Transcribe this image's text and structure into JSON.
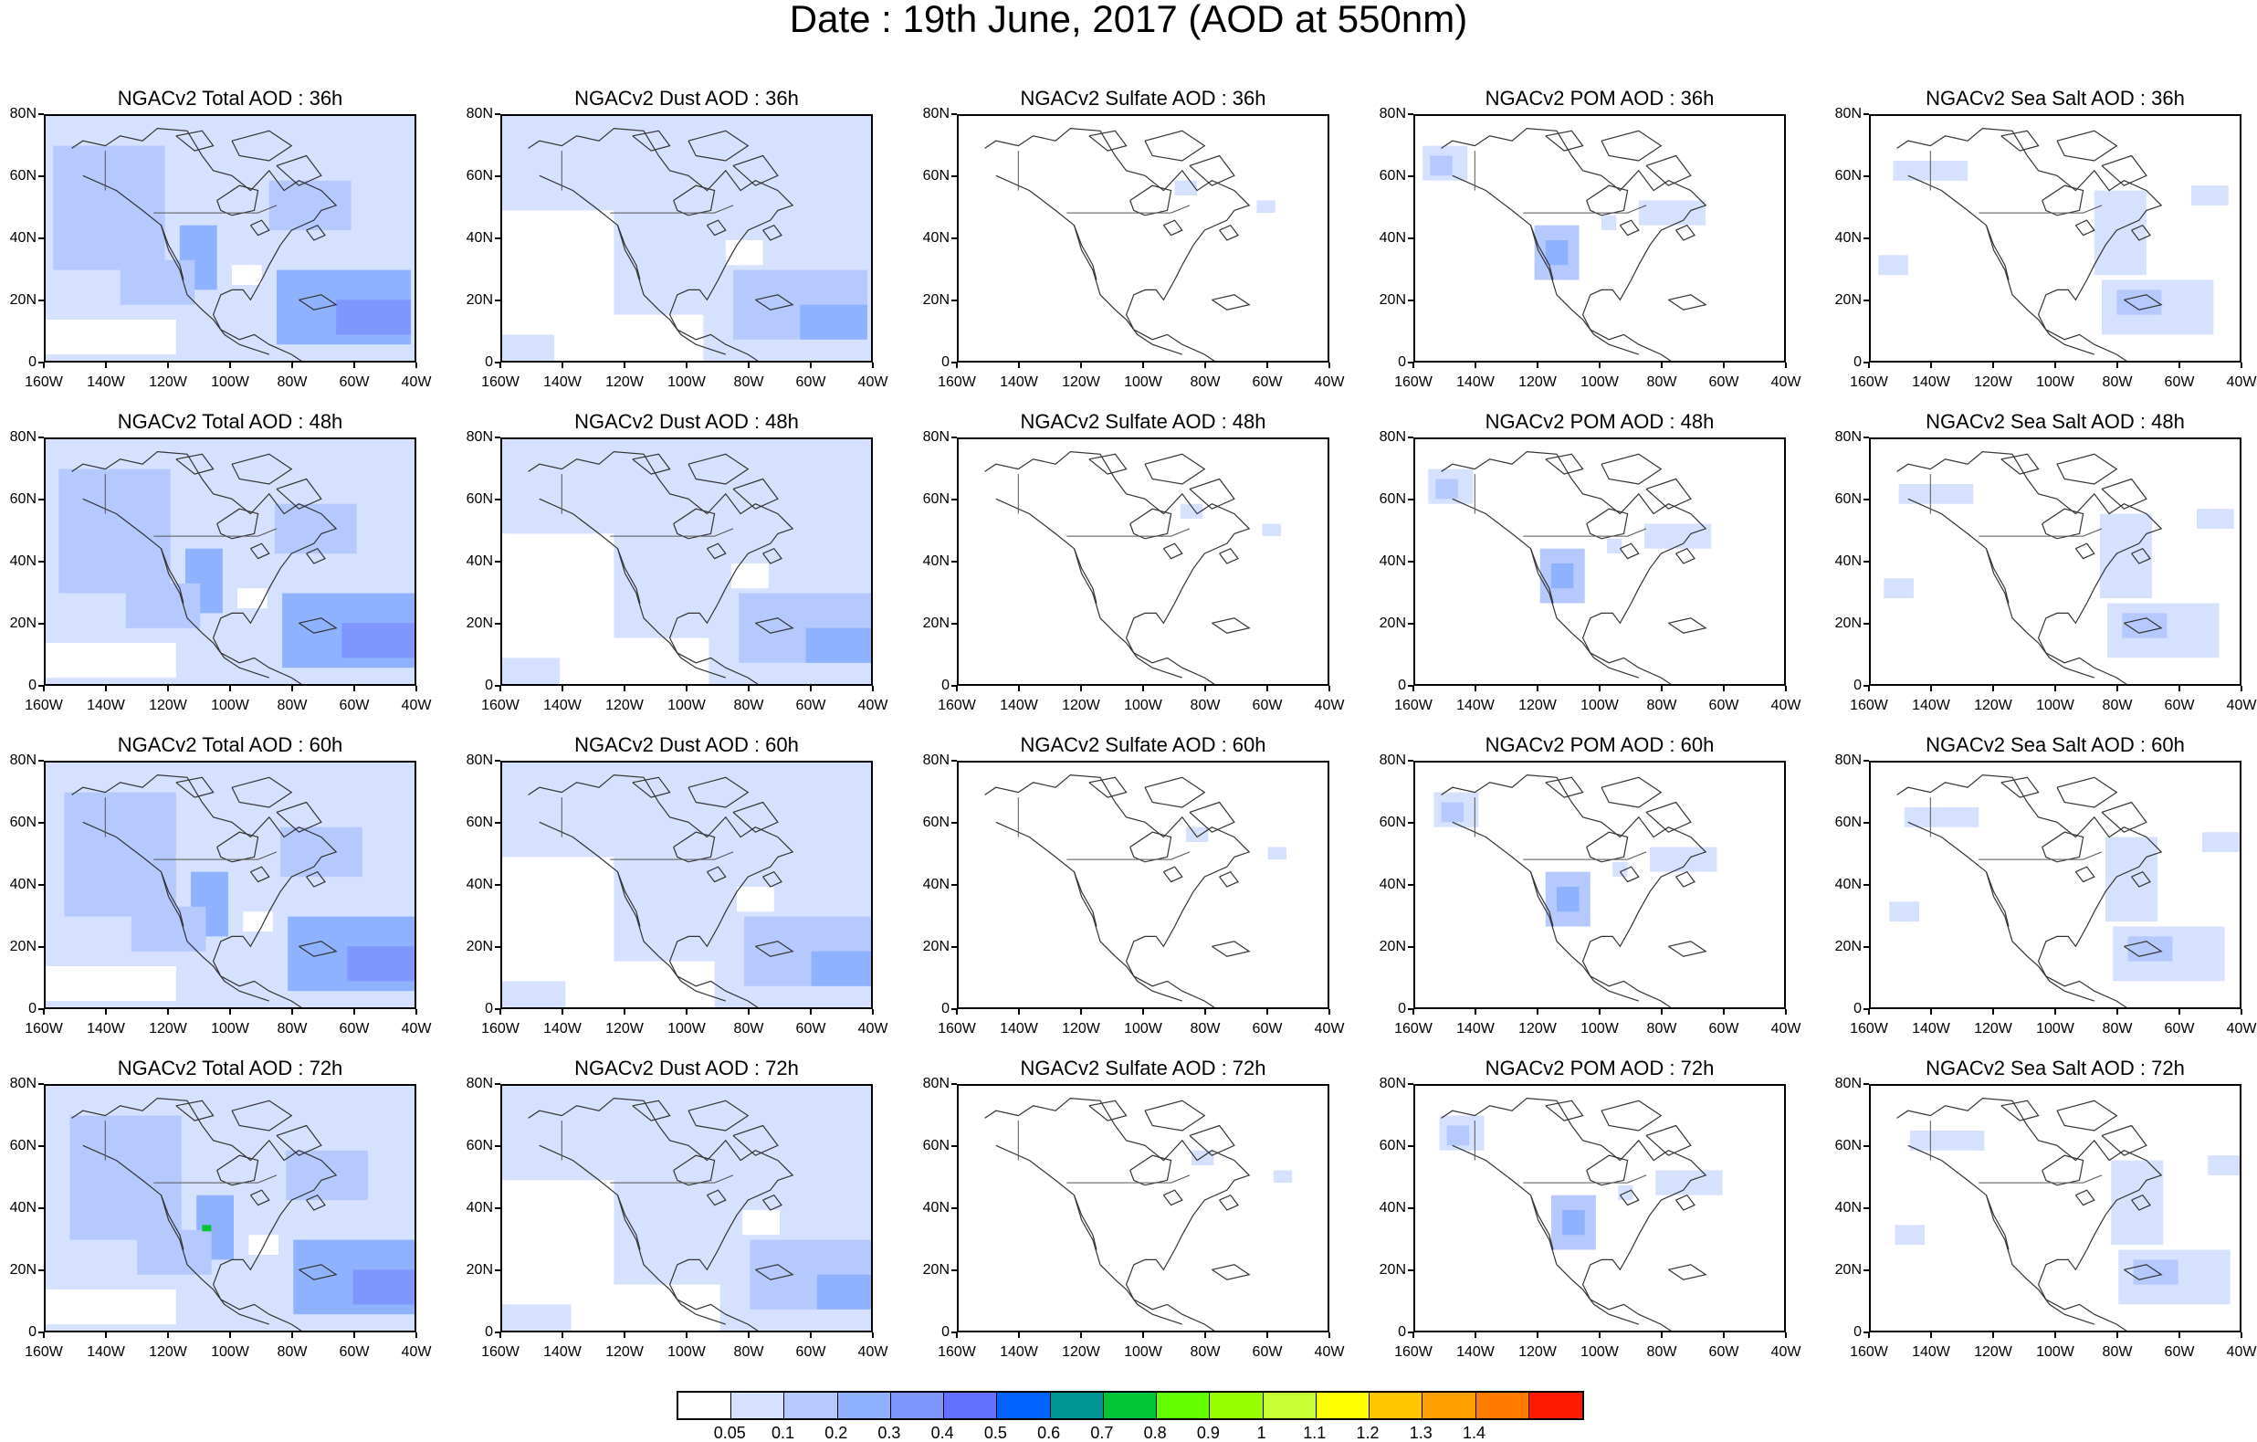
{
  "title": "Date : 19th June, 2017 (AOD at 550nm)",
  "panels": [
    {
      "title": "NGACv2 Total AOD : 36h",
      "field": "total",
      "row": 0,
      "col": 0
    },
    {
      "title": "NGACv2 Dust AOD : 36h",
      "field": "dust",
      "row": 0,
      "col": 1
    },
    {
      "title": "NGACv2 Sulfate AOD : 36h",
      "field": "sulfate",
      "row": 0,
      "col": 2
    },
    {
      "title": "NGACv2 POM AOD : 36h",
      "field": "pom",
      "row": 0,
      "col": 3
    },
    {
      "title": "NGACv2 Sea Salt AOD : 36h",
      "field": "seasalt",
      "row": 0,
      "col": 4
    },
    {
      "title": "NGACv2 Total AOD : 48h",
      "field": "total",
      "row": 1,
      "col": 0
    },
    {
      "title": "NGACv2 Dust AOD : 48h",
      "field": "dust",
      "row": 1,
      "col": 1
    },
    {
      "title": "NGACv2 Sulfate AOD : 48h",
      "field": "sulfate",
      "row": 1,
      "col": 2
    },
    {
      "title": "NGACv2 POM AOD : 48h",
      "field": "pom",
      "row": 1,
      "col": 3
    },
    {
      "title": "NGACv2 Sea Salt AOD : 48h",
      "field": "seasalt",
      "row": 1,
      "col": 4
    },
    {
      "title": "NGACv2 Total AOD : 60h",
      "field": "total",
      "row": 2,
      "col": 0
    },
    {
      "title": "NGACv2 Dust AOD : 60h",
      "field": "dust",
      "row": 2,
      "col": 1
    },
    {
      "title": "NGACv2 Sulfate AOD : 60h",
      "field": "sulfate",
      "row": 2,
      "col": 2
    },
    {
      "title": "NGACv2 POM AOD : 60h",
      "field": "pom",
      "row": 2,
      "col": 3
    },
    {
      "title": "NGACv2 Sea Salt AOD : 60h",
      "field": "seasalt",
      "row": 2,
      "col": 4
    },
    {
      "title": "NGACv2 Total AOD : 72h",
      "field": "total",
      "row": 3,
      "col": 0
    },
    {
      "title": "NGACv2 Dust AOD : 72h",
      "field": "dust",
      "row": 3,
      "col": 1
    },
    {
      "title": "NGACv2 Sulfate AOD : 72h",
      "field": "sulfate",
      "row": 3,
      "col": 2
    },
    {
      "title": "NGACv2 POM AOD : 72h",
      "field": "pom",
      "row": 3,
      "col": 3
    },
    {
      "title": "NGACv2 Sea Salt  AOD : 72h",
      "field": "seasalt",
      "row": 3,
      "col": 4
    }
  ],
  "axes": {
    "lon_labels": [
      "160W",
      "140W",
      "120W",
      "100W",
      "80W",
      "60W",
      "40W"
    ],
    "lat_labels": [
      "80N",
      "60N",
      "40N",
      "20N",
      "0"
    ],
    "lon_range": [
      -160,
      -40
    ],
    "lat_range": [
      0,
      80
    ]
  },
  "colorbar": {
    "colors": [
      "#ffffff",
      "#d6e1ff",
      "#b5c9ff",
      "#8eb2ff",
      "#7f96ff",
      "#6370ff",
      "#0063ff",
      "#009696",
      "#00c633",
      "#63ff00",
      "#96ff00",
      "#c6ff33",
      "#ffff00",
      "#ffc600",
      "#ffa000",
      "#ff7c00",
      "#ff1900"
    ],
    "labels": [
      "0.05",
      "0.1",
      "0.2",
      "0.3",
      "0.4",
      "0.5",
      "0.6",
      "0.7",
      "0.8",
      "0.9",
      "1",
      "1.1",
      "1.2",
      "1.3",
      "1.4"
    ]
  }
}
